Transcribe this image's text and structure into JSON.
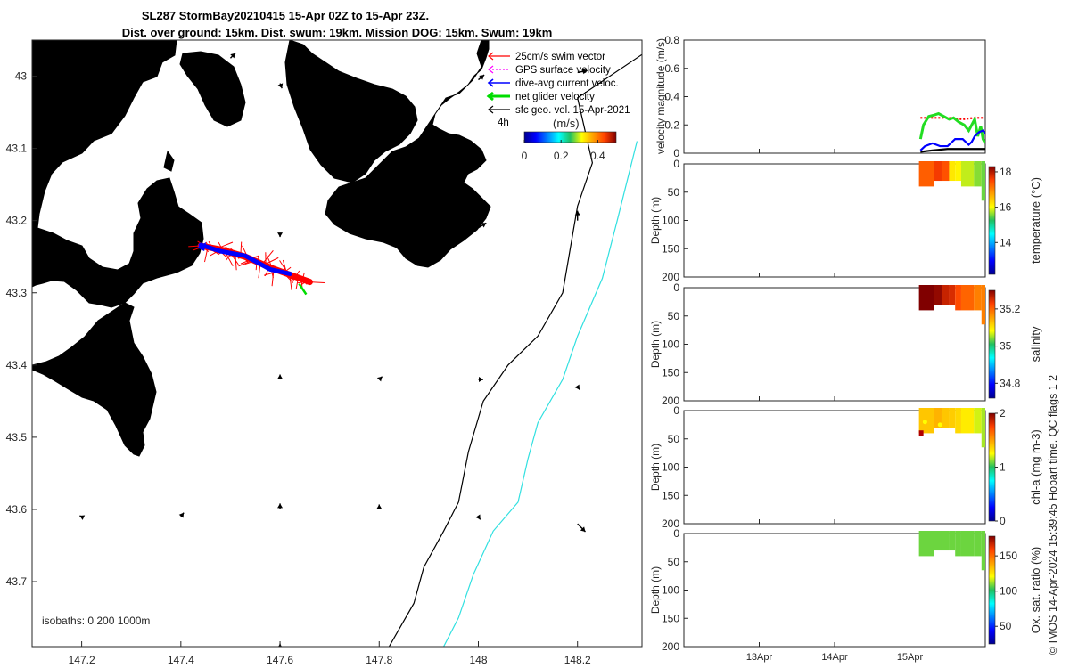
{
  "title": {
    "line1": "SL287 StormBay20210415 15-Apr 02Z to 15-Apr 23Z.",
    "line2": "Dist. over ground: 15km. Dist. swum: 19km. Mission DOG: 15km. Swum: 19km"
  },
  "footer_stamp": "© IMOS 14-Apr-2024 15:39:45 Hobart time. QC flags 1  2",
  "colors": {
    "land": "#f9c49b",
    "swim": "#ff0000",
    "gps": "#ff00ff",
    "dive_avg": "#0000ff",
    "net": "#00dd00",
    "geo": "#000000",
    "isobath_200": "#000000",
    "isobath_1000": "#30e0e0"
  },
  "chart_data": [
    {
      "type": "map",
      "name": "track-map",
      "xlim": [
        147.1,
        148.33
      ],
      "ylim": [
        -43.79,
        -42.95
      ],
      "xticks": [
        147.2,
        147.4,
        147.6,
        147.8,
        148,
        148.2
      ],
      "xtick_labels": [
        "147.2",
        "147.4",
        "147.6",
        "147.8",
        "148",
        "148.2"
      ],
      "yticks": [
        -43,
        -43.1,
        -43.2,
        -43.3,
        -43.4,
        -43.5,
        -43.6,
        -43.7
      ],
      "ytick_labels": [
        "-43",
        "43.1",
        "43.2",
        "43.3",
        "43.4",
        "43.5",
        "43.6",
        "43.7"
      ],
      "legend": [
        {
          "label": "25cm/s swim vector",
          "color": "#ff0000"
        },
        {
          "label": "GPS surface velocity",
          "color": "#ff00ff"
        },
        {
          "label": "dive-avg current veloc.",
          "color": "#0000ff"
        },
        {
          "label": "net glider velocity",
          "color": "#00dd00"
        },
        {
          "label": "sfc geo. vel. 15-Apr-2021",
          "color": "#000000"
        }
      ],
      "vector_key": "4h",
      "colorbar": {
        "label": "(m/s)",
        "ticks": [
          0,
          0.2,
          0.4
        ],
        "tick_labels": [
          "0",
          "0.2",
          "0.4"
        ],
        "range": [
          0,
          0.5
        ]
      },
      "isobath_note": "isobaths: 0   200  1000m",
      "isobath_200": [
        [
          148.33,
          -42.97
        ],
        [
          148.2,
          -43.03
        ],
        [
          148.23,
          -43.12
        ],
        [
          148.2,
          -43.18
        ],
        [
          148.19,
          -43.22
        ],
        [
          148.17,
          -43.3
        ],
        [
          148.12,
          -43.36
        ],
        [
          148.06,
          -43.4
        ],
        [
          148.01,
          -43.45
        ],
        [
          147.98,
          -43.52
        ],
        [
          147.96,
          -43.59
        ],
        [
          147.93,
          -43.63
        ],
        [
          147.89,
          -43.68
        ],
        [
          147.87,
          -43.73
        ],
        [
          147.82,
          -43.79
        ]
      ],
      "isobath_1000": [
        [
          148.32,
          -43.09
        ],
        [
          148.28,
          -43.2
        ],
        [
          148.25,
          -43.28
        ],
        [
          148.2,
          -43.36
        ],
        [
          148.17,
          -43.42
        ],
        [
          148.12,
          -43.48
        ],
        [
          148.1,
          -43.53
        ],
        [
          148.08,
          -43.59
        ],
        [
          148.03,
          -43.63
        ],
        [
          147.99,
          -43.69
        ],
        [
          147.96,
          -43.75
        ],
        [
          147.93,
          -43.79
        ]
      ],
      "track": [
        [
          147.44,
          -43.235
        ],
        [
          147.48,
          -43.24
        ],
        [
          147.53,
          -43.25
        ],
        [
          147.58,
          -43.265
        ],
        [
          147.62,
          -43.275
        ],
        [
          147.66,
          -43.285
        ]
      ],
      "geo_vectors": [
        {
          "x": 147.5,
          "y": -42.975,
          "u": 0.05,
          "v": 0.05
        },
        {
          "x": 148.2,
          "y": -42.995,
          "u": 0.1,
          "v": 0.02
        },
        {
          "x": 147.5,
          "y": -43.0,
          "u": 0.02,
          "v": -0.03
        },
        {
          "x": 147.6,
          "y": -43.01,
          "u": 0.02,
          "v": -0.05
        },
        {
          "x": 147.7,
          "y": -43.0,
          "u": 0.04,
          "v": -0.04
        },
        {
          "x": 148.0,
          "y": -43.005,
          "u": 0.06,
          "v": 0.05
        },
        {
          "x": 148.2,
          "y": -43.2,
          "u": 0.0,
          "v": 0.1
        },
        {
          "x": 148.0,
          "y": -43.21,
          "u": 0.08,
          "v": 0.05
        },
        {
          "x": 147.6,
          "y": -43.22,
          "u": 0.0,
          "v": -0.02
        },
        {
          "x": 147.6,
          "y": -43.42,
          "u": 0.0,
          "v": 0.05
        },
        {
          "x": 147.8,
          "y": -43.42,
          "u": 0.03,
          "v": 0.03
        },
        {
          "x": 148.0,
          "y": -43.42,
          "u": 0.05,
          "v": 0.0
        },
        {
          "x": 148.2,
          "y": -43.43,
          "u": 0.02,
          "v": -0.03
        },
        {
          "x": 147.2,
          "y": -43.61,
          "u": -0.02,
          "v": 0.01
        },
        {
          "x": 147.4,
          "y": -43.61,
          "u": 0.03,
          "v": 0.04
        },
        {
          "x": 147.6,
          "y": -43.6,
          "u": 0.0,
          "v": 0.06
        },
        {
          "x": 147.8,
          "y": -43.6,
          "u": 0.0,
          "v": 0.05
        },
        {
          "x": 148.0,
          "y": -43.61,
          "u": 0.02,
          "v": -0.03
        },
        {
          "x": 148.2,
          "y": -43.62,
          "u": 0.08,
          "v": -0.08
        },
        {
          "x": 147.6,
          "y": -43.79,
          "u": 0.0,
          "v": 0.03
        }
      ]
    },
    {
      "type": "line",
      "name": "velocity-panel",
      "ylabel": "velocity magnitude (m/s)",
      "ylim": [
        0,
        0.8
      ],
      "yticks": [
        0,
        0.2,
        0.4,
        0.6,
        0.8
      ],
      "ytick_labels": [
        "0",
        "0.2",
        "0.4",
        "0.6",
        "0.8"
      ],
      "xlim": [
        0,
        4
      ],
      "series": [
        {
          "name": "swim speed",
          "color": "#ff0000",
          "x": [
            3.14,
            3.3,
            3.5,
            3.7,
            3.86,
            3.98
          ],
          "y": [
            0.25,
            0.25,
            0.25,
            0.24,
            0.25,
            0.25
          ]
        },
        {
          "name": "net glider velocity",
          "color": "#22dd22",
          "x": [
            3.14,
            3.18,
            3.25,
            3.32,
            3.38,
            3.45,
            3.52,
            3.58,
            3.65,
            3.72,
            3.78,
            3.82,
            3.86,
            3.9,
            3.94,
            3.97,
            4.0
          ],
          "y": [
            0.1,
            0.2,
            0.26,
            0.27,
            0.28,
            0.26,
            0.24,
            0.25,
            0.22,
            0.2,
            0.16,
            0.2,
            0.24,
            0.12,
            0.19,
            0.1,
            0.07
          ]
        },
        {
          "name": "dive-avg current",
          "color": "#0000ff",
          "x": [
            3.14,
            3.2,
            3.3,
            3.4,
            3.5,
            3.6,
            3.7,
            3.78,
            3.82,
            3.86,
            3.92,
            3.97,
            4.0
          ],
          "y": [
            0.02,
            0.05,
            0.07,
            0.05,
            0.05,
            0.1,
            0.1,
            0.06,
            0.08,
            0.12,
            0.15,
            0.16,
            0.14
          ]
        },
        {
          "name": "sfc geo vel",
          "color": "#000000",
          "x": [
            3.14,
            3.3,
            3.5,
            3.7,
            3.9,
            4.0
          ],
          "y": [
            0.01,
            0.02,
            0.03,
            0.03,
            0.03,
            0.03
          ]
        }
      ]
    },
    {
      "type": "heatmap",
      "name": "temperature-panel",
      "ylabel": "Depth (m)",
      "clabel": "temperature (°C)",
      "crange": [
        12.2,
        18.3
      ],
      "cticks": [
        14,
        16,
        18
      ],
      "ctick_labels": [
        "14",
        "16",
        "18"
      ],
      "yticks": [
        0,
        50,
        100,
        150,
        200
      ],
      "ytick_labels": [
        "0",
        "50",
        "100",
        "150",
        "200"
      ],
      "columns": [
        {
          "x": 3.12,
          "value": 17.3,
          "bottom": 40
        },
        {
          "x": 3.32,
          "value": 17.6,
          "bottom": 30
        },
        {
          "x": 3.42,
          "value": 17.4,
          "bottom": 30
        },
        {
          "x": 3.52,
          "value": 16.2,
          "bottom": 30
        },
        {
          "x": 3.6,
          "value": 16.1,
          "bottom": 30
        },
        {
          "x": 3.68,
          "value": 15.8,
          "bottom": 40
        },
        {
          "x": 3.85,
          "value": 15.6,
          "bottom": 40
        },
        {
          "x": 3.95,
          "value": 15.5,
          "bottom": 65
        }
      ]
    },
    {
      "type": "heatmap",
      "name": "salinity-panel",
      "ylabel": "Depth (m)",
      "clabel": "salinity",
      "crange": [
        34.72,
        35.3
      ],
      "cticks": [
        34.8,
        35,
        35.2
      ],
      "ctick_labels": [
        "34.8",
        "35",
        "35.2"
      ],
      "yticks": [
        0,
        50,
        100,
        150,
        200
      ],
      "ytick_labels": [
        "0",
        "50",
        "100",
        "150",
        "200"
      ],
      "columns": [
        {
          "x": 3.12,
          "value": 35.3,
          "bottom": 40
        },
        {
          "x": 3.32,
          "value": 35.29,
          "bottom": 30
        },
        {
          "x": 3.42,
          "value": 35.26,
          "bottom": 30
        },
        {
          "x": 3.52,
          "value": 35.25,
          "bottom": 30
        },
        {
          "x": 3.6,
          "value": 35.22,
          "bottom": 40
        },
        {
          "x": 3.68,
          "value": 35.2,
          "bottom": 40
        },
        {
          "x": 3.85,
          "value": 35.18,
          "bottom": 40
        },
        {
          "x": 3.95,
          "value": 35.18,
          "bottom": 65
        }
      ]
    },
    {
      "type": "heatmap",
      "name": "chla-panel",
      "ylabel": "Depth (m)",
      "clabel": "chl-a (mg m-3)",
      "crange": [
        0,
        2
      ],
      "cticks": [
        0,
        1,
        2
      ],
      "ctick_labels": [
        "0",
        "1",
        "2"
      ],
      "yticks": [
        0,
        50,
        100,
        150,
        200
      ],
      "ytick_labels": [
        "0",
        "50",
        "100",
        "150",
        "200"
      ],
      "columns": [
        {
          "x": 3.12,
          "value": 1.4,
          "bottom": 40
        },
        {
          "x": 3.32,
          "value": 1.45,
          "bottom": 30
        },
        {
          "x": 3.42,
          "value": 1.4,
          "bottom": 30
        },
        {
          "x": 3.52,
          "value": 1.38,
          "bottom": 30
        },
        {
          "x": 3.6,
          "value": 1.35,
          "bottom": 40
        },
        {
          "x": 3.68,
          "value": 1.3,
          "bottom": 40
        },
        {
          "x": 3.85,
          "value": 1.2,
          "bottom": 40
        },
        {
          "x": 3.95,
          "value": 1.15,
          "bottom": 65
        }
      ]
    },
    {
      "type": "heatmap",
      "name": "oxygen-panel",
      "ylabel": "Depth (m)",
      "clabel": "Ox. sat. ratio (%)",
      "crange": [
        25,
        178
      ],
      "cticks": [
        50,
        100,
        150
      ],
      "ctick_labels": [
        "50",
        "100",
        "150"
      ],
      "yticks": [
        0,
        50,
        100,
        150,
        200
      ],
      "ytick_labels": [
        "0",
        "50",
        "100",
        "150",
        "200"
      ],
      "xticks": [
        1,
        2,
        3
      ],
      "xtick_labels": [
        "13Apr",
        "14Apr",
        "15Apr"
      ],
      "columns": [
        {
          "x": 3.12,
          "value": 108,
          "bottom": 40
        },
        {
          "x": 3.32,
          "value": 108,
          "bottom": 30
        },
        {
          "x": 3.42,
          "value": 108,
          "bottom": 30
        },
        {
          "x": 3.52,
          "value": 108,
          "bottom": 30
        },
        {
          "x": 3.6,
          "value": 108,
          "bottom": 40
        },
        {
          "x": 3.68,
          "value": 108,
          "bottom": 40
        },
        {
          "x": 3.85,
          "value": 108,
          "bottom": 40
        },
        {
          "x": 3.95,
          "value": 108,
          "bottom": 65
        }
      ]
    }
  ]
}
